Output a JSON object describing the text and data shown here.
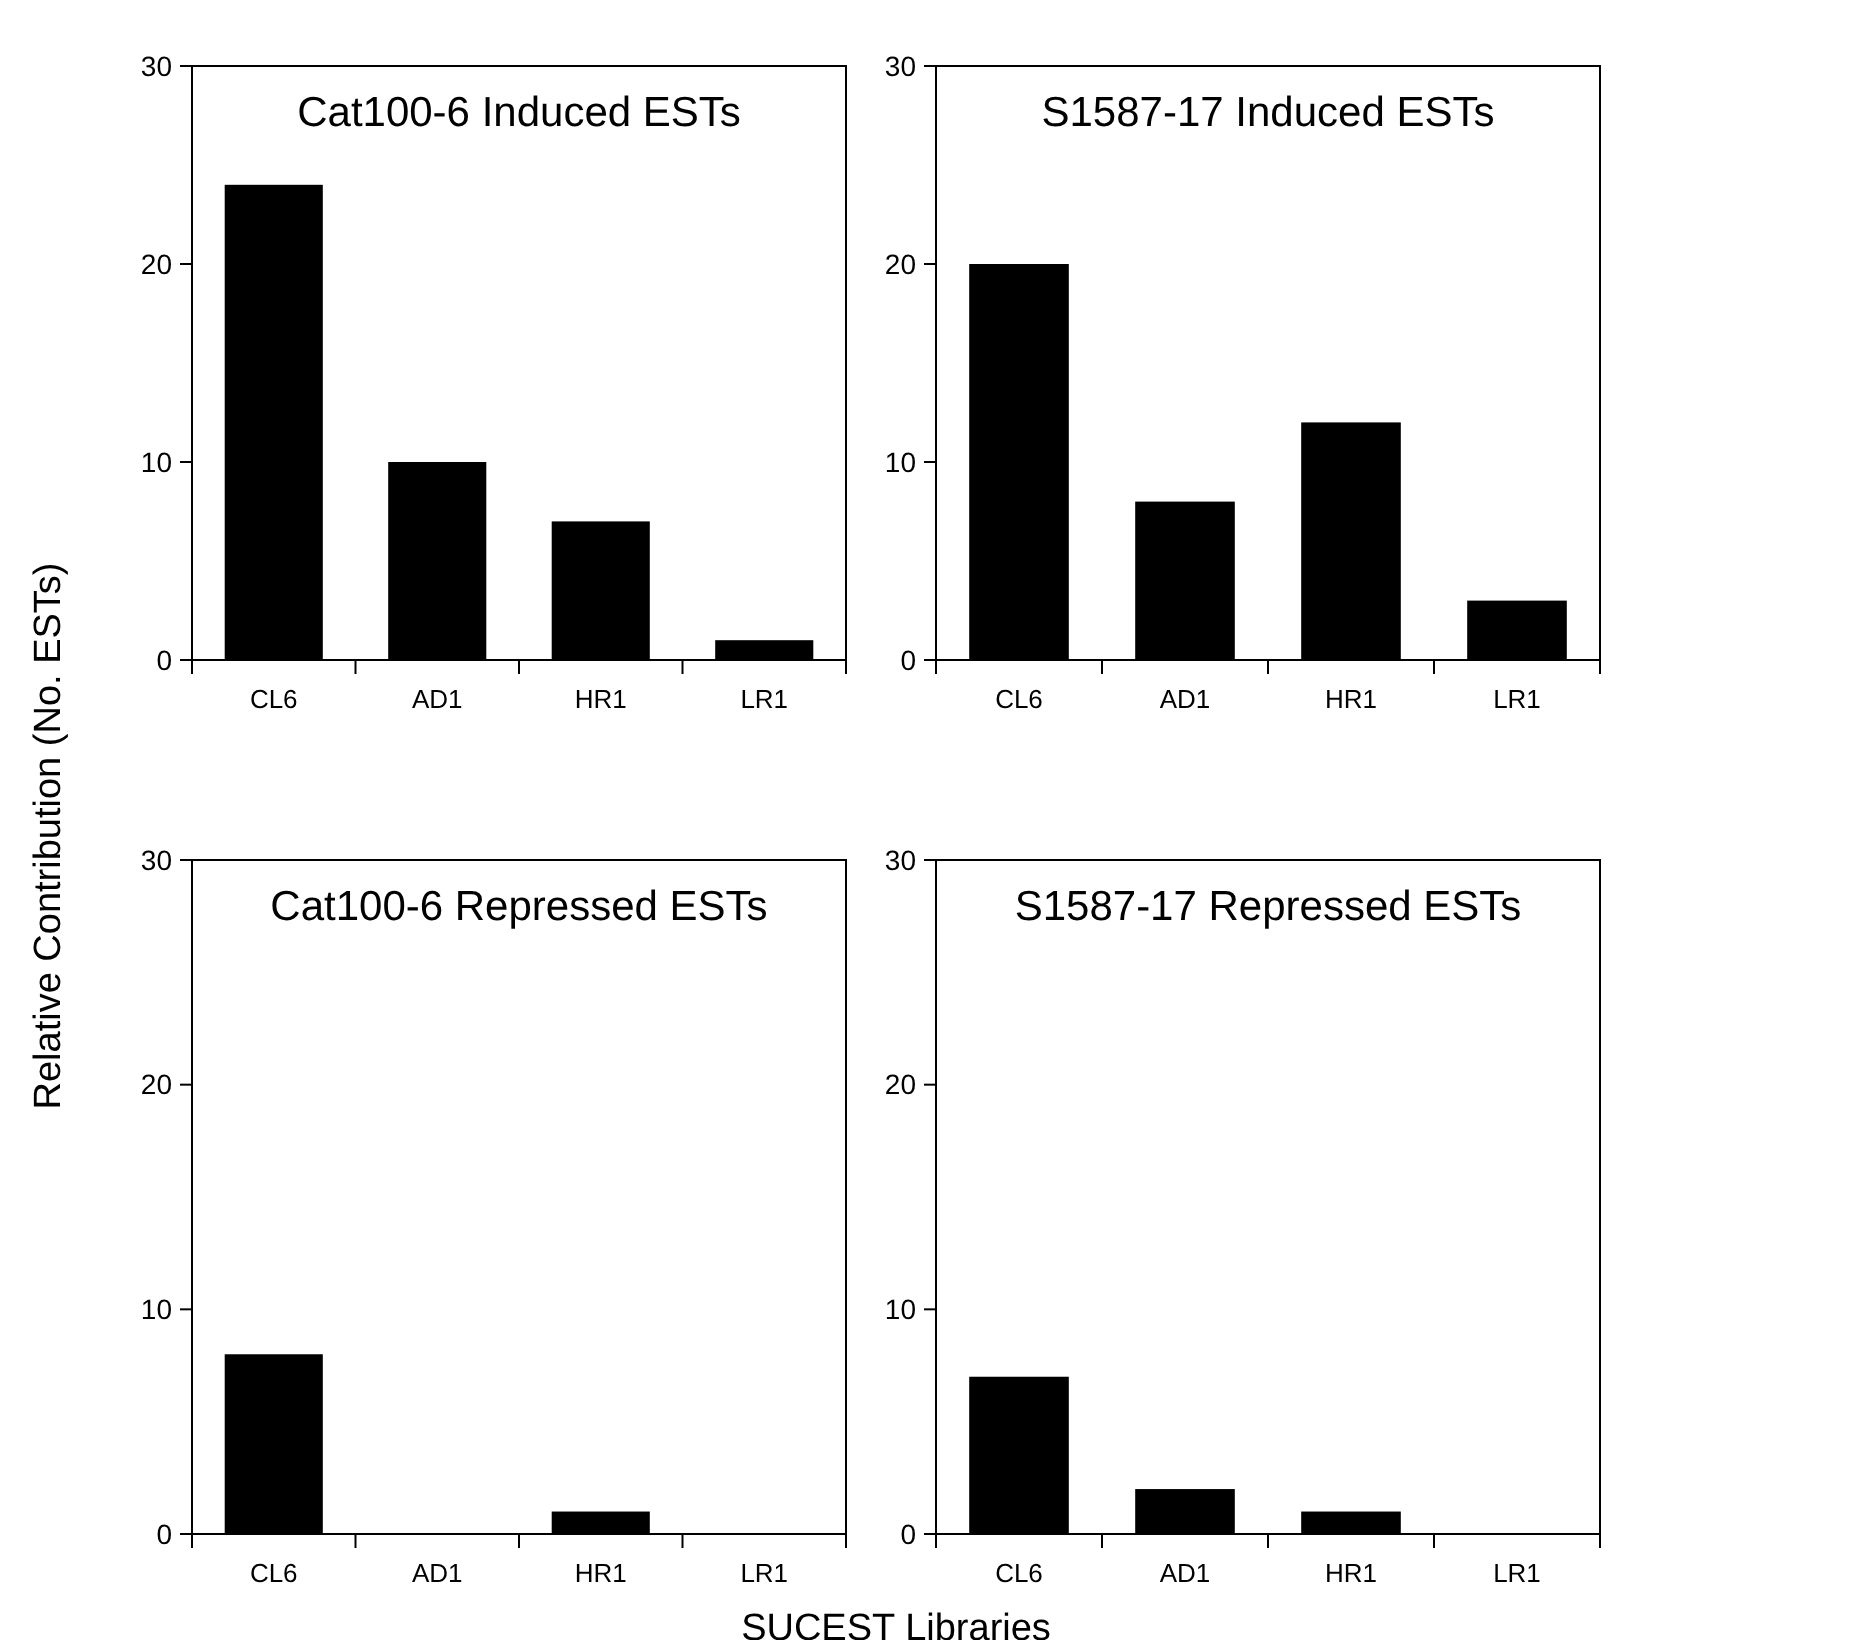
{
  "chart_data": [
    {
      "type": "bar",
      "title": "Cat100-6 Induced ESTs",
      "ylabel": "Relative Contribution (No. ESTs)",
      "categories": [
        "CL6",
        "AD1",
        "HR1",
        "LR1"
      ],
      "values": [
        24,
        10,
        7,
        1
      ],
      "color": "#000000",
      "ylim": [
        0,
        30
      ],
      "yticks": [
        0,
        10,
        20,
        30
      ]
    },
    {
      "type": "bar",
      "title": "S1587-17 Induced ESTs",
      "categories": [
        "CL6",
        "AD1",
        "HR1",
        "LR1"
      ],
      "values": [
        20,
        8,
        12,
        3
      ],
      "color": "#000000",
      "ylim": [
        0,
        30
      ],
      "yticks": [
        0,
        10,
        20,
        30
      ]
    },
    {
      "type": "bar",
      "title": "Cat100-6 Repressed ESTs",
      "xlabel": "SUCEST Libraries",
      "categories": [
        "CL6",
        "AD1",
        "HR1",
        "LR1"
      ],
      "values": [
        8,
        0,
        1,
        0
      ],
      "color": "#000000",
      "ylim": [
        0,
        30
      ],
      "yticks": [
        0,
        10,
        20,
        30
      ]
    },
    {
      "type": "bar",
      "title": "S1587-17 Repressed ESTs",
      "categories": [
        "CL6",
        "AD1",
        "HR1",
        "LR1"
      ],
      "values": [
        7,
        2,
        1,
        0
      ],
      "color": "#000000",
      "ylim": [
        0,
        30
      ],
      "yticks": [
        0,
        10,
        20,
        30
      ]
    }
  ]
}
